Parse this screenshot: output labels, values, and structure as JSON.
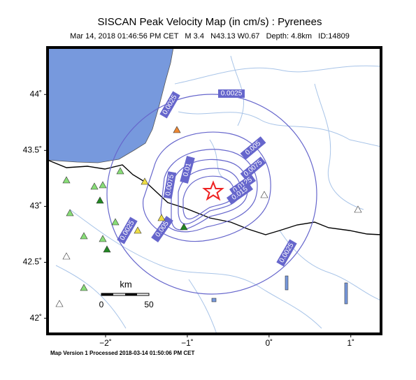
{
  "header": {
    "title": "SISCAN Peak Velocity Map (in cm/s) : Pyrenees",
    "subtitle": "Mar 14, 2018 01:46:56 PM CET   M 3.4   N43.13 W0.67   Depth: 4.8km   ID:14809"
  },
  "map": {
    "xlim": [
      -2.71,
      1.37
    ],
    "ylim": [
      41.86,
      44.42
    ],
    "xticks": [
      {
        "value": -2,
        "label": "−2˚"
      },
      {
        "value": -1,
        "label": "−1˚"
      },
      {
        "value": 0,
        "label": "0˚"
      },
      {
        "value": 1,
        "label": "1˚"
      }
    ],
    "yticks": [
      {
        "value": 42,
        "label": "42˚"
      },
      {
        "value": 42.5,
        "label": "42.5˚"
      },
      {
        "value": 43,
        "label": "43˚"
      },
      {
        "value": 43.5,
        "label": "43.5˚"
      },
      {
        "value": 44,
        "label": "44˚"
      }
    ],
    "contour_labels": [
      "0.0025",
      "0.0025",
      "0.005",
      "0.0075",
      "0.01",
      "0.0075",
      "0.0125",
      "0.015",
      "0.005",
      "0.0025",
      "0.0025"
    ],
    "scale": {
      "unit": "km",
      "labels": [
        "0",
        "50"
      ]
    }
  },
  "footer": "Map Version 1 Processed 2018-03-14 01:50:06 PM CET"
}
